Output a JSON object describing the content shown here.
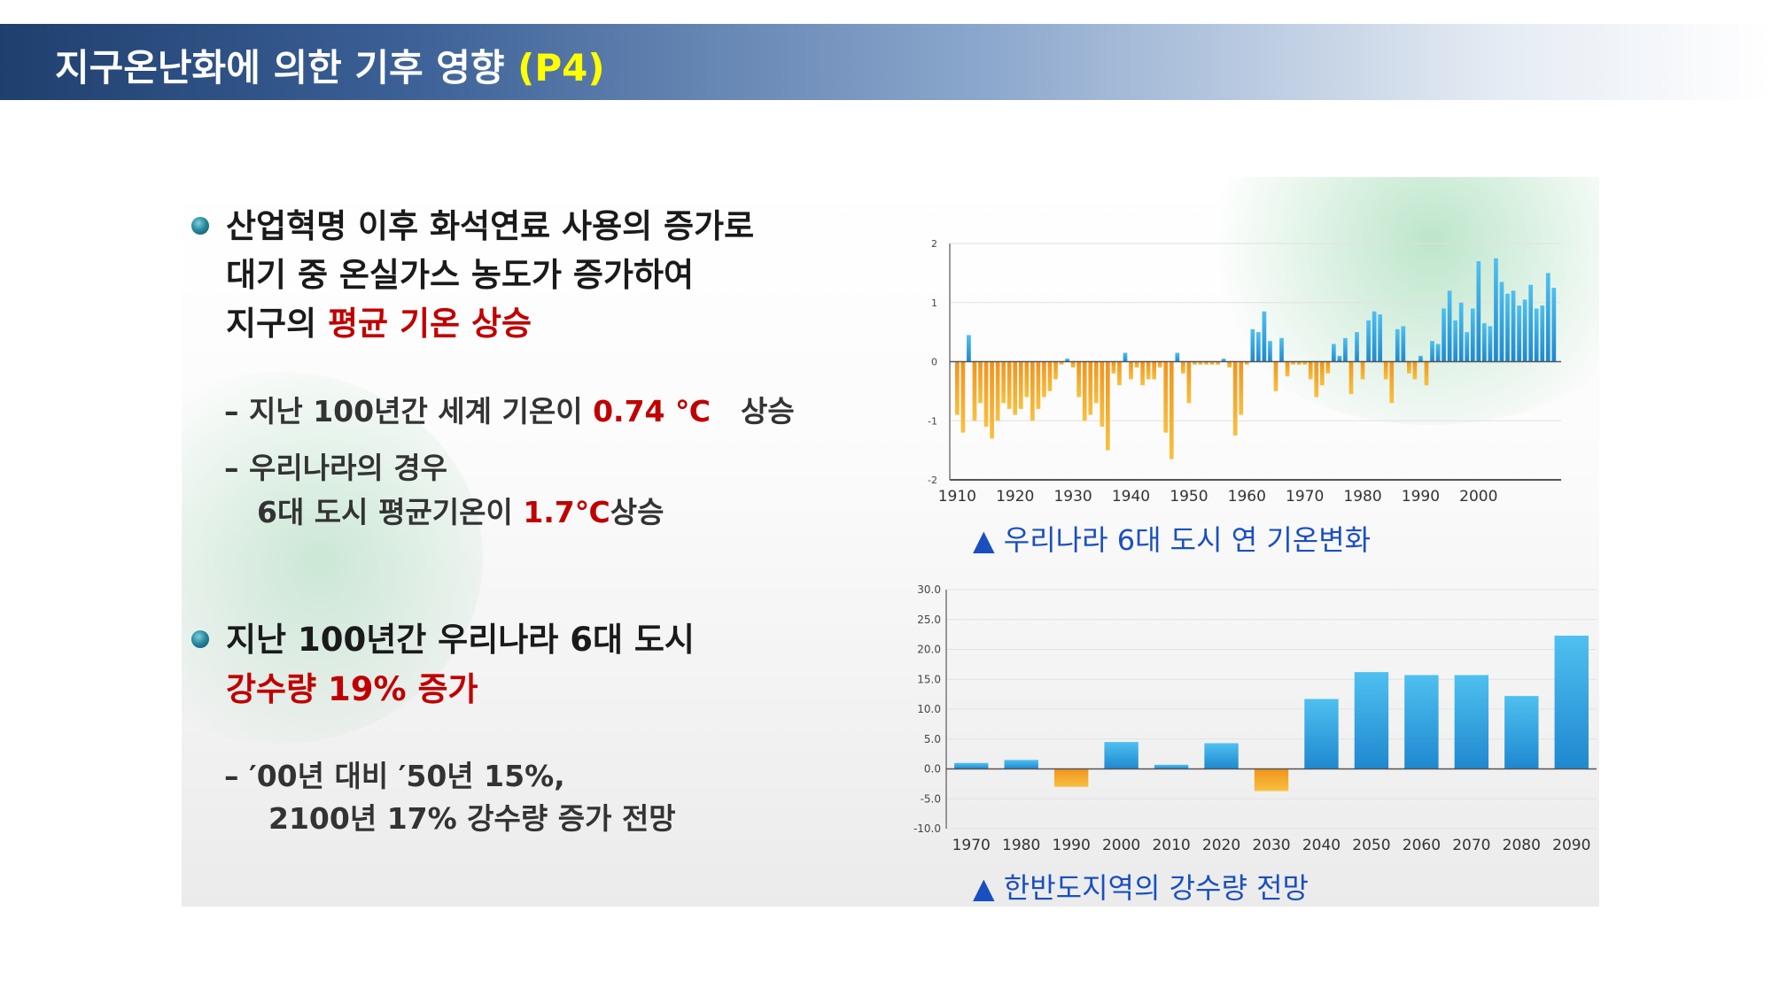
{
  "header": {
    "title": "지구온난화에 의한 기후 영향",
    "tag": "(P4)"
  },
  "section1": {
    "line1": "산업혁명 이후 화석연료 사용의 증가로",
    "line2": "대기 중 온실가스 농도가 증가하여",
    "line3_prefix": "지구의 ",
    "line3_highlight": "평균 기온 상승",
    "sub1_prefix": "– 지난 100년간 세계 기온이 ",
    "sub1_value": "0.74 ℃",
    "sub1_suffix": "상승",
    "sub2_line1": "– 우리나라의 경우",
    "sub2_line2_prefix": "6대 도시 평균기온이 ",
    "sub2_line2_value": "1.7℃",
    "sub2_line2_suffix": "상승"
  },
  "section2": {
    "line1": "지난 100년간 우리나라 6대 도시",
    "line2_highlight": "강수량 19% 증가",
    "sub1": "– ′00년 대비 ′50년 15%,",
    "sub2": "2100년 17% 강수량 증가 전망"
  },
  "colors": {
    "positive": "#1e88d0",
    "negative": "#f0941c",
    "highlight": "#c00000",
    "caption": "#1a4fbf"
  },
  "chart_data": [
    {
      "type": "bar",
      "title": "▲ 우리나라 6대 도시 연 기온변화",
      "ylim": [
        -2,
        2
      ],
      "y_ticks": [
        "2",
        "1",
        "0",
        "-1",
        "-2"
      ],
      "x_tick_labels": [
        "1910",
        "1920",
        "1930",
        "1940",
        "1950",
        "1960",
        "1970",
        "1980",
        "1990",
        "2000"
      ],
      "x_start": 1910,
      "values": [
        -0.9,
        -1.2,
        0.45,
        -1.0,
        -0.7,
        -1.1,
        -1.3,
        -1.0,
        -0.7,
        -0.8,
        -0.9,
        -0.8,
        -0.6,
        -1.0,
        -0.8,
        -0.6,
        -0.5,
        -0.3,
        -0.05,
        0.05,
        -0.1,
        -0.6,
        -1.0,
        -0.9,
        -0.7,
        -1.1,
        -1.5,
        -0.2,
        -0.4,
        0.15,
        -0.3,
        -0.1,
        -0.4,
        -0.3,
        -0.3,
        -0.1,
        -1.2,
        -1.65,
        0.15,
        -0.2,
        -0.7,
        -0.05,
        -0.05,
        -0.05,
        -0.05,
        -0.05,
        0.05,
        -0.1,
        -1.25,
        -0.9,
        -0.05,
        0.55,
        0.5,
        0.85,
        0.35,
        -0.5,
        0.4,
        -0.25,
        -0.05,
        -0.05,
        -0.05,
        -0.3,
        -0.6,
        -0.4,
        -0.2,
        0.3,
        0.1,
        0.4,
        -0.55,
        0.5,
        -0.3,
        0.7,
        0.85,
        0.8,
        -0.3,
        -0.7,
        0.55,
        0.6,
        -0.2,
        -0.3,
        0.1,
        -0.4,
        0.35,
        0.3,
        0.9,
        1.2,
        0.7,
        1.0,
        0.5,
        0.9,
        1.7,
        0.65,
        0.6,
        1.75,
        1.35,
        1.15,
        1.2,
        0.95,
        1.05,
        1.3,
        0.9,
        0.95,
        1.5,
        1.25
      ]
    },
    {
      "type": "bar",
      "title": "▲ 한반도지역의 강수량 전망",
      "ylim": [
        -10,
        30
      ],
      "y_ticks": [
        "30.0",
        "25.0",
        "20.0",
        "15.0",
        "10.0",
        "5.0",
        "0.0",
        "-5.0",
        "-10.0"
      ],
      "categories": [
        "1970",
        "1980",
        "1990",
        "2000",
        "2010",
        "2020",
        "2030",
        "2040",
        "2050",
        "2060",
        "2070",
        "2080",
        "2090"
      ],
      "values": [
        1.0,
        1.5,
        -3.0,
        4.5,
        0.7,
        4.3,
        -3.7,
        11.7,
        16.2,
        15.7,
        15.7,
        12.2,
        22.3
      ]
    }
  ]
}
